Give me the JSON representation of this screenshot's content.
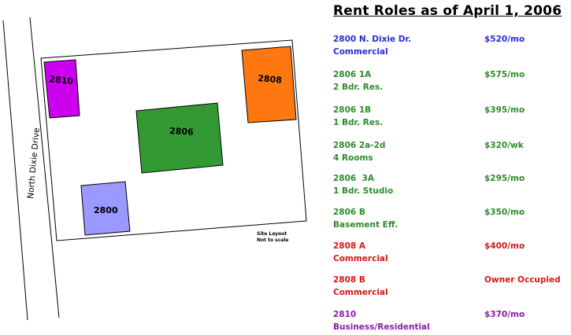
{
  "title": "Rent Roles as of April 1, 2006",
  "colors": {
    "blue": "#2b2bd4",
    "green": "#2e8b2e",
    "red": "#d61818",
    "purple": "#8a1ca8",
    "bldg_2810": "#cc00ee",
    "bldg_2808": "#ff7711",
    "bldg_2806": "#339933",
    "bldg_2800": "#9999ff"
  },
  "site": {
    "road_label": "North Dixie Drive",
    "note_line1": "Site Layout",
    "note_line2": "Not to scale",
    "buildings": [
      {
        "id": "2810",
        "label": "2810"
      },
      {
        "id": "2808",
        "label": "2808"
      },
      {
        "id": "2806",
        "label": "2806"
      },
      {
        "id": "2800",
        "label": "2800"
      }
    ]
  },
  "entries": [
    {
      "unit": "2800 N. Dixie Dr.",
      "desc": "Commercial",
      "rent": "$520/mo",
      "color": "#2b2bd4"
    },
    {
      "unit": "2806 1A",
      "desc": "2 Bdr. Res.",
      "rent": "$575/mo",
      "color": "#2e8b2e"
    },
    {
      "unit": "2806 1B",
      "desc": "1 Bdr. Res.",
      "rent": "$395/mo",
      "color": "#2e8b2e"
    },
    {
      "unit": "2806 2a-2d",
      "desc": "4 Rooms",
      "rent": "$320/wk",
      "color": "#2e8b2e"
    },
    {
      "unit": "2806  3A",
      "desc": "1 Bdr. Studio",
      "rent": "$295/mo",
      "color": "#2e8b2e"
    },
    {
      "unit": "2806 B",
      "desc": "Basement Eff.",
      "rent": "$350/mo",
      "color": "#2e8b2e"
    },
    {
      "unit": "2808 A",
      "desc": "Commercial",
      "rent": "$400/mo",
      "color": "#d61818"
    },
    {
      "unit": "2808 B",
      "desc": "Commercial",
      "rent": "Owner Occupied",
      "color": "#d61818"
    },
    {
      "unit": "2810",
      "desc": "Business/Residential",
      "rent": "$370/mo",
      "color": "#8a1ca8"
    }
  ]
}
